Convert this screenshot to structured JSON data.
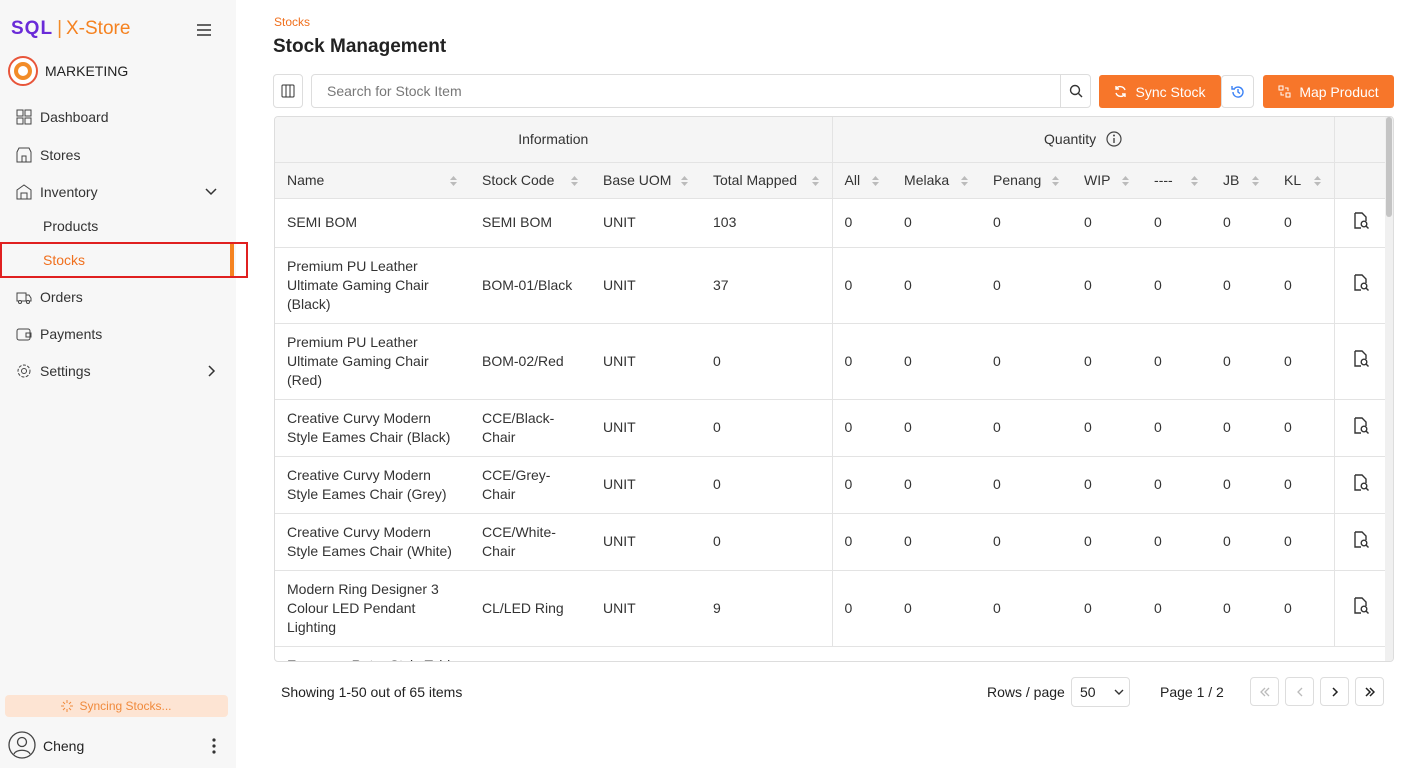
{
  "brand": {
    "sql": "SQL",
    "name": "X-Store"
  },
  "account": {
    "name": "MARKETING"
  },
  "nav": [
    {
      "label": "Dashboard"
    },
    {
      "label": "Stores"
    },
    {
      "label": "Inventory"
    },
    {
      "label": "Products"
    },
    {
      "label": "Stocks"
    },
    {
      "label": "Orders"
    },
    {
      "label": "Payments"
    },
    {
      "label": "Settings"
    }
  ],
  "status": "Syncing Stocks...",
  "user": "Cheng",
  "breadcrumb": "Stocks",
  "title": "Stock Management",
  "search_placeholder": "Search for Stock Item",
  "buttons": {
    "sync": "Sync Stock",
    "map": "Map Product"
  },
  "table": {
    "groups": [
      "Information",
      "Quantity"
    ],
    "columns": [
      "Name",
      "Stock Code",
      "Base UOM",
      "Total Mapped"
    ],
    "quantity_columns": [
      "All",
      "Melaka",
      "Penang",
      "WIP",
      "----",
      "JB",
      "KL"
    ],
    "rows": [
      {
        "name": "SEMI BOM",
        "code": "SEMI BOM",
        "uom": "UNIT",
        "mapped": 103,
        "qty": [
          0,
          0,
          0,
          0,
          0,
          0,
          0
        ]
      },
      {
        "name": "Premium PU Leather Ultimate Gaming Chair (Black)",
        "code": "BOM-01/Black",
        "uom": "UNIT",
        "mapped": 37,
        "qty": [
          0,
          0,
          0,
          0,
          0,
          0,
          0
        ]
      },
      {
        "name": "Premium PU Leather Ultimate Gaming Chair (Red)",
        "code": "BOM-02/Red",
        "uom": "UNIT",
        "mapped": 0,
        "qty": [
          0,
          0,
          0,
          0,
          0,
          0,
          0
        ]
      },
      {
        "name": "Creative Curvy Modern Style Eames Chair (Black)",
        "code": "CCE/Black-Chair",
        "uom": "UNIT",
        "mapped": 0,
        "qty": [
          0,
          0,
          0,
          0,
          0,
          0,
          0
        ]
      },
      {
        "name": "Creative Curvy Modern Style Eames Chair (Grey)",
        "code": "CCE/Grey-Chair",
        "uom": "UNIT",
        "mapped": 0,
        "qty": [
          0,
          0,
          0,
          0,
          0,
          0,
          0
        ]
      },
      {
        "name": "Creative Curvy Modern Style Eames Chair (White)",
        "code": "CCE/White-Chair",
        "uom": "UNIT",
        "mapped": 0,
        "qty": [
          0,
          0,
          0,
          0,
          0,
          0,
          0
        ]
      },
      {
        "name": "Modern Ring Designer 3 Colour LED Pendant Lighting",
        "code": "CL/LED Ring",
        "uom": "UNIT",
        "mapped": 9,
        "qty": [
          0,
          0,
          0,
          0,
          0,
          0,
          0
        ]
      },
      {
        "name": "European Retro Style Table"
      }
    ]
  },
  "footer": {
    "showing": "Showing 1-50 out of 65 items",
    "rows_label": "Rows / page",
    "rows_value": "50",
    "page": "Page 1 / 2"
  }
}
